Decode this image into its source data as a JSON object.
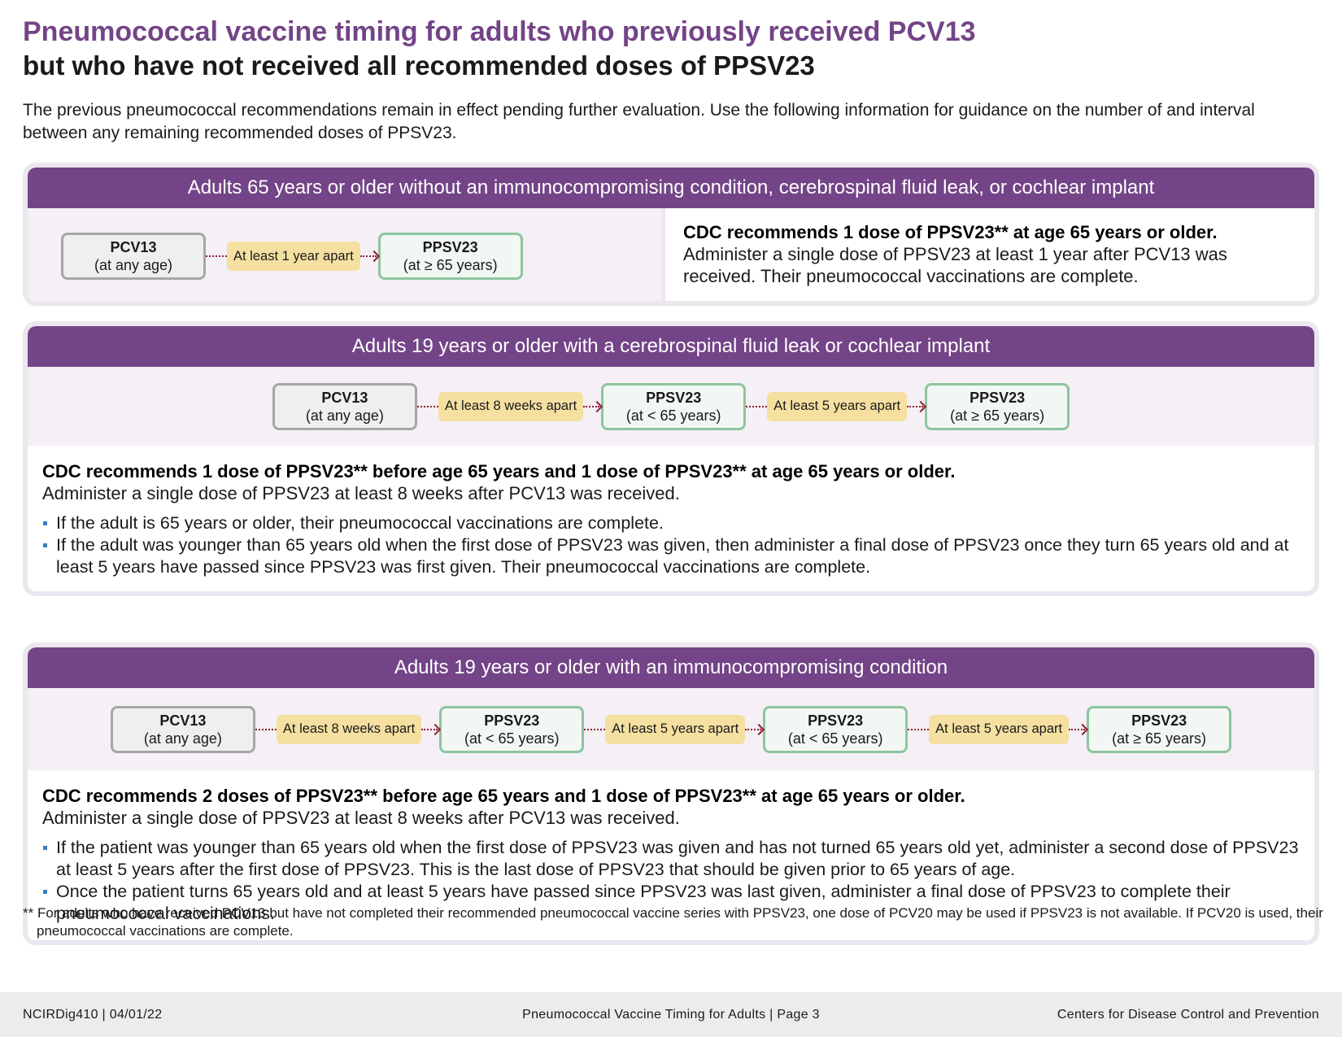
{
  "title": "Pneumococcal vaccine timing for adults who previously received PCV13",
  "subtitle": "but who have not received all recommended doses of PPSV23",
  "intro": "The previous pneumococcal recommendations remain in effect pending further evaluation. Use the following information for guidance on the number of and interval between any remaining recommended doses of PPSV23.",
  "section1": {
    "header": "Adults 65 years or older without an immunocompromising condition, cerebrospinal fluid leak, or cochlear implant",
    "flow": {
      "box1_name": "PCV13",
      "box1_age": "(at any age)",
      "interval1": "At least 1 year apart",
      "box2_name": "PPSV23",
      "box2_age": "(at ≥ 65 years)"
    },
    "rec_bold": "CDC recommends 1 dose of PPSV23** at age 65 years or older.",
    "rec_text": "Administer a single dose of PPSV23 at least 1 year after PCV13 was received. Their pneumococcal vaccinations are complete."
  },
  "section2": {
    "header": "Adults 19 years or older with a cerebrospinal fluid leak or cochlear implant",
    "flow": {
      "box1_name": "PCV13",
      "box1_age": "(at any age)",
      "interval1": "At least 8 weeks apart",
      "box2_name": "PPSV23",
      "box2_age": "(at < 65 years)",
      "interval2": "At least 5 years apart",
      "box3_name": "PPSV23",
      "box3_age": "(at ≥ 65 years)"
    },
    "rec_bold": "CDC recommends 1 dose of PPSV23** before age 65 years and 1 dose of PPSV23** at age 65 years or older.",
    "rec_text": "Administer a single dose of PPSV23 at least 8 weeks after PCV13 was received.",
    "bullets": [
      "If the adult is 65 years or older, their pneumococcal vaccinations are complete.",
      "If the adult was younger than 65 years old when the first dose of PPSV23 was given, then administer a final dose of PPSV23 once they turn 65 years old and at least 5 years have passed since PPSV23 was first given. Their pneumococcal vaccinations are complete."
    ]
  },
  "section3": {
    "header": "Adults 19 years or older with an immunocompromising condition",
    "flow": {
      "box1_name": "PCV13",
      "box1_age": "(at any age)",
      "interval1": "At least 8 weeks apart",
      "box2_name": "PPSV23",
      "box2_age": "(at < 65 years)",
      "interval2": "At least 5 years apart",
      "box3_name": "PPSV23",
      "box3_age": "(at < 65 years)",
      "interval3": "At least 5 years apart",
      "box4_name": "PPSV23",
      "box4_age": "(at ≥ 65 years)"
    },
    "rec_bold": "CDC recommends 2 doses of PPSV23** before age 65 years and 1 dose of PPSV23**  at age 65 years or older.",
    "rec_text": "Administer a single dose of PPSV23 at least 8 weeks after PCV13 was received.",
    "bullets": [
      "If the patient was younger than 65 years old when the first dose of PPSV23 was given and has not turned 65 years old yet, administer a second dose of PPSV23 at least 5 years after the first dose of PPSV23. This is the last dose of PPSV23 that should be given prior to 65 years of age.",
      "Once the patient turns 65 years old and at least 5 years have passed since PPSV23 was last given, administer a final dose of PPSV23 to complete their pneumococcal vaccinations."
    ]
  },
  "footnote": "** For adults who have received PCV13 but have not completed their recommended pneumococcal vaccine series with PPSV23, one dose of PCV20 may be used if PPSV23 is not available. If PCV20 is used, their pneumococcal vaccinations are complete.",
  "footer": {
    "left": "NCIRDig410 | 04/01/22",
    "center": "Pneumococcal Vaccine Timing for Adults | Page 3",
    "right": "Centers for Disease Control and Prevention"
  },
  "colors": {
    "brand_purple": "#734487",
    "interval_pill": "#f5e0a1",
    "ppsv_border": "#8cc59e",
    "pcv_border": "#a6a6a8",
    "arrow": "#8e1e34"
  }
}
